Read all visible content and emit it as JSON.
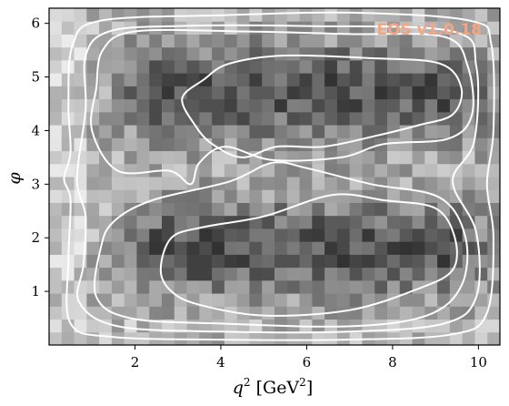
{
  "chart_data": {
    "type": "heatmap",
    "title": "",
    "xlabel": "q^2 [GeV^2]",
    "ylabel": "φ",
    "xlim": [
      0.0,
      10.5
    ],
    "ylim": [
      0.0,
      6.283
    ],
    "x_ticks": [
      2,
      4,
      6,
      8,
      10
    ],
    "y_ticks": [
      1,
      2,
      3,
      4,
      5,
      6
    ],
    "x_tick_labels": [
      "2",
      "4",
      "6",
      "8",
      "10"
    ],
    "y_tick_labels": [
      "1",
      "2",
      "3",
      "4",
      "5",
      "6"
    ],
    "grid": false,
    "colormap": "grayscale (darker = higher density)",
    "watermark": "EOS v1.0.18",
    "watermark_color": "#f4a582",
    "contour_color": "#ffffff",
    "description_of_structure": "two density lobes at phi≈1.8 and phi≈4.7 spanning q^2≈2–10, with nested contour levels"
  }
}
